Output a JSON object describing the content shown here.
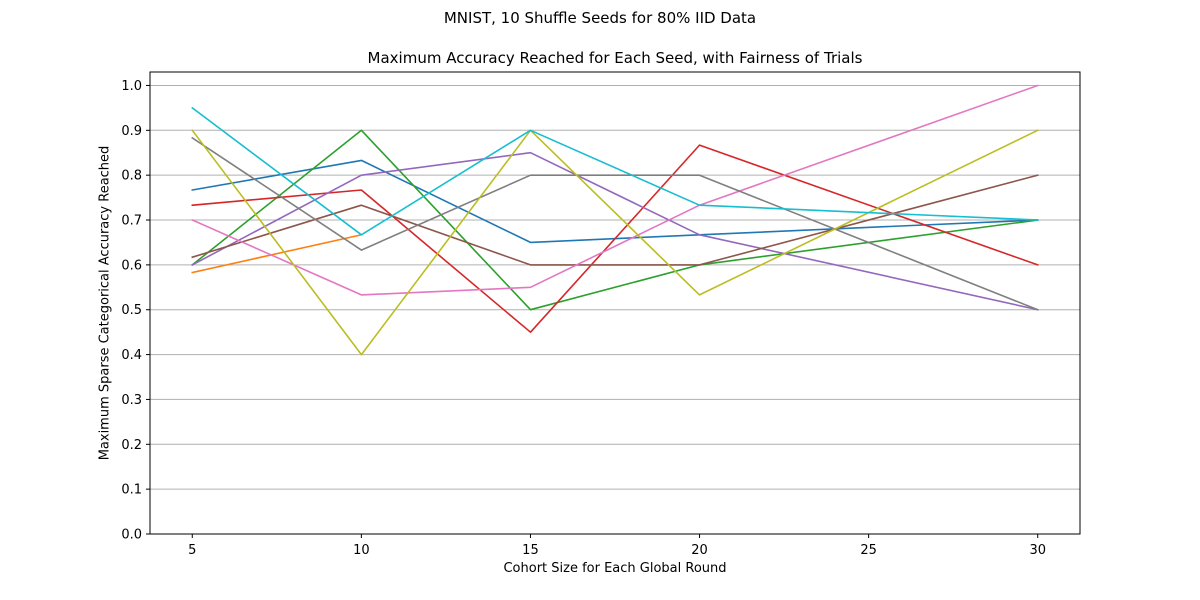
{
  "figure": {
    "suptitle": "MNIST, 10 Shuffle Seeds for 80% IID Data"
  },
  "chart_data": {
    "type": "line",
    "title": "Maximum Accuracy Reached for Each Seed, with Fairness of Trials",
    "xlabel": "Cohort Size for Each Global Round",
    "ylabel": "Maximum Sparse Categorical Accuracy Reached",
    "xlim": [
      3.75,
      31.25
    ],
    "ylim": [
      0.0,
      1.03
    ],
    "xticks": [
      5,
      10,
      15,
      20,
      25,
      30
    ],
    "yticks": [
      0.0,
      0.1,
      0.2,
      0.3,
      0.4,
      0.5,
      0.6,
      0.7,
      0.8,
      0.9,
      1.0
    ],
    "grid": "horizontal",
    "series": [
      {
        "color": "#1f77b4",
        "x": [
          5,
          10,
          15,
          20,
          30
        ],
        "y": [
          0.767,
          0.833,
          0.65,
          0.667,
          0.7
        ]
      },
      {
        "color": "#ff7f0e",
        "x": [
          5,
          10
        ],
        "y": [
          0.583,
          0.667
        ]
      },
      {
        "color": "#2ca02c",
        "x": [
          5,
          10,
          15,
          20,
          30
        ],
        "y": [
          0.6,
          0.9,
          0.5,
          0.6,
          0.7
        ]
      },
      {
        "color": "#d62728",
        "x": [
          5,
          10,
          15,
          20,
          30
        ],
        "y": [
          0.733,
          0.767,
          0.45,
          0.867,
          0.6
        ]
      },
      {
        "color": "#9467bd",
        "x": [
          5,
          10,
          15,
          20,
          30
        ],
        "y": [
          0.6,
          0.8,
          0.85,
          0.667,
          0.5
        ]
      },
      {
        "color": "#8c564b",
        "x": [
          5,
          10,
          15,
          20,
          30
        ],
        "y": [
          0.617,
          0.733,
          0.6,
          0.6,
          0.8
        ]
      },
      {
        "color": "#e377c2",
        "x": [
          5,
          10,
          15,
          20,
          30
        ],
        "y": [
          0.7,
          0.533,
          0.55,
          0.733,
          1.0
        ]
      },
      {
        "color": "#7f7f7f",
        "x": [
          5,
          10,
          15,
          20,
          30
        ],
        "y": [
          0.883,
          0.633,
          0.8,
          0.8,
          0.5
        ]
      },
      {
        "color": "#bcbd22",
        "x": [
          5,
          10,
          15,
          20,
          30
        ],
        "y": [
          0.9,
          0.4,
          0.9,
          0.533,
          0.9
        ]
      },
      {
        "color": "#17becf",
        "x": [
          5,
          10,
          15,
          20,
          30
        ],
        "y": [
          0.95,
          0.667,
          0.9,
          0.733,
          0.7
        ]
      }
    ]
  }
}
